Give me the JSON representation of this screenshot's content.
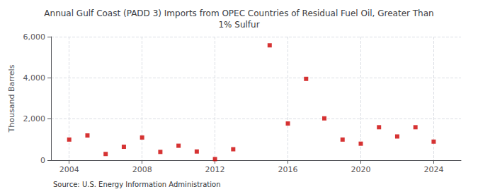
{
  "chart_data": {
    "type": "scatter",
    "title": "Annual Gulf Coast (PADD 3) Imports from OPEC Countries of Residual Fuel Oil, Greater Than\n1% Sulfur",
    "ylabel": "Thousand Barrels",
    "source": "Source: U.S. Energy Information Administration",
    "x": [
      2004,
      2005,
      2006,
      2007,
      2008,
      2009,
      2010,
      2011,
      2012,
      2013,
      2015,
      2016,
      2017,
      2018,
      2019,
      2020,
      2021,
      2022,
      2023,
      2024
    ],
    "values": [
      1000,
      1200,
      300,
      650,
      1100,
      400,
      700,
      420,
      50,
      530,
      5580,
      1780,
      3950,
      2030,
      1000,
      800,
      1600,
      1150,
      1600,
      900
    ],
    "color": "#cc0000",
    "marker": "square",
    "xlim": [
      2003,
      2025.5
    ],
    "xticks": [
      2004,
      2008,
      2012,
      2016,
      2020,
      2024
    ],
    "ylim": [
      0,
      6000
    ],
    "yticks": [
      0,
      {
        "value": 2000,
        "label": "2,000"
      },
      {
        "value": 4000,
        "label": "4,000"
      },
      {
        "value": 6000,
        "label": "6,000"
      }
    ],
    "grid": true
  }
}
